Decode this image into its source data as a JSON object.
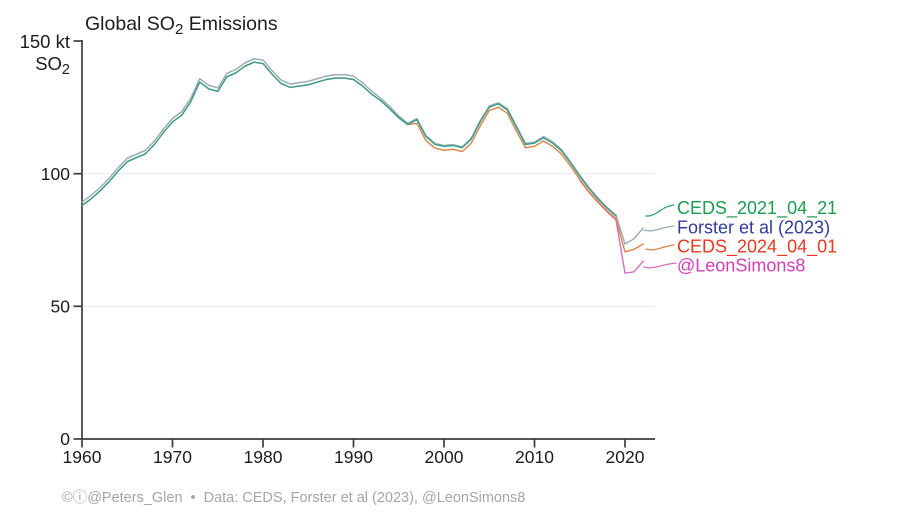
{
  "chart_data": {
    "type": "line",
    "title": {
      "prefix": "Global SO",
      "sub": "2",
      "suffix": " Emissions"
    },
    "y_axis": {
      "unit_top_label": "150 kt",
      "unit_formula_prefix": "SO",
      "unit_formula_sub": "2",
      "tick_labels": [
        "100",
        "50",
        "0"
      ],
      "tick_values": [
        100,
        50,
        0
      ],
      "min": 0,
      "max": 150,
      "gridline_values": [
        100,
        50
      ]
    },
    "x_axis": {
      "tick_labels": [
        "1960",
        "1970",
        "1980",
        "1990",
        "2000",
        "2010",
        "2020"
      ],
      "tick_values": [
        1960,
        1970,
        1980,
        1990,
        2000,
        2010,
        2020
      ],
      "min": 1960,
      "max": 2023.3
    },
    "series": [
      {
        "name": "CEDS_2021_04_21",
        "line_color": "#35a088",
        "label_color": "#1d9b4e",
        "start_year": 1960,
        "end_year": 2019,
        "values": [
          88,
          90.5,
          93.5,
          97,
          101,
          104.5,
          106,
          107.5,
          111,
          115.5,
          119.5,
          122,
          127,
          134.5,
          132,
          131,
          136.5,
          138,
          140.5,
          142,
          141.5,
          137.5,
          134,
          132.5,
          133,
          133.5,
          134.5,
          135.5,
          136,
          136,
          135.5,
          133,
          130,
          127.5,
          124.5,
          121,
          118.5,
          120.3,
          114,
          111,
          110.3,
          110.6,
          109.8,
          113,
          119.5,
          125,
          126.3,
          124,
          117.5,
          111,
          111.5,
          113.5,
          111.5,
          108.5,
          104,
          99,
          94.5,
          90.5,
          87,
          84
        ]
      },
      {
        "name": "Forster et al (2023)",
        "line_color": "#98a7b6",
        "label_color": "#323c9c",
        "start_year": 1960,
        "end_year": 2022,
        "values": [
          89.3,
          91.8,
          94.8,
          98.3,
          102.3,
          105.8,
          107.3,
          108.8,
          112.3,
          116.8,
          120.8,
          123.3,
          128.3,
          135.8,
          133.3,
          132.3,
          137.8,
          139.3,
          141.8,
          143.3,
          142.8,
          138.8,
          135.3,
          133.8,
          134.3,
          134.8,
          135.8,
          136.8,
          137.3,
          137.3,
          136.8,
          134.2,
          131.1,
          128.4,
          125.3,
          121.7,
          119,
          120.8,
          114.4,
          111.4,
          110.6,
          110.9,
          110.1,
          113.4,
          120,
          125.5,
          126.8,
          124.5,
          118,
          111.4,
          111.9,
          114,
          112,
          109,
          104.4,
          99.4,
          94.9,
          90.9,
          87.4,
          84.4,
          73.5,
          75.5,
          79.5
        ]
      },
      {
        "name": "CEDS_2024_04_01",
        "line_color": "#df8245",
        "label_color": "#e5391f",
        "start_year": 1960,
        "end_year": 2022,
        "values": [
          88,
          90.5,
          93.5,
          97,
          101,
          104.5,
          106,
          107.5,
          111,
          115.5,
          119.5,
          122,
          127,
          134.5,
          132,
          131,
          136.5,
          138,
          140.5,
          142,
          141.5,
          137.5,
          134,
          132.5,
          133,
          133.5,
          134.5,
          135.5,
          136,
          136,
          135.5,
          133,
          130,
          127.5,
          124.5,
          121,
          118.5,
          119,
          112.5,
          109.6,
          108.8,
          109.2,
          108.3,
          111.5,
          118,
          123.8,
          125,
          122.8,
          116,
          109.8,
          110.3,
          112.3,
          110.3,
          107.3,
          102.8,
          97.8,
          93.3,
          89.5,
          86,
          83,
          70.5,
          71.5,
          73.5
        ]
      },
      {
        "name": "@LeonSimons8",
        "line_color": "#d96fc0",
        "label_color": "#d13fb7",
        "start_year": 2015,
        "end_year": 2022,
        "values": [
          97.5,
          93,
          89.2,
          85.7,
          82.5,
          62.5,
          63,
          67
        ]
      }
    ],
    "footer": {
      "license_icons": "©ⓘ",
      "credit": "@Peters_Glen",
      "separator": "•",
      "source": "Data: CEDS, Forster et al (2023), @LeonSimons8"
    }
  }
}
